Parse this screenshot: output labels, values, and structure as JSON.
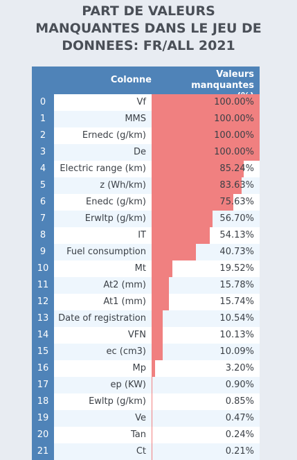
{
  "title": {
    "line1": "PART DE VALEURS",
    "line2": "MANQUANTES DANS LE JEU DE",
    "line3": "DONNEES: FR/ALL 2021"
  },
  "table": {
    "col_header": "Colonne",
    "val_header_line1": "Valeurs manquantes",
    "val_header_line2": "(%)"
  },
  "colors": {
    "bar": "#f08080",
    "header": "#4f83b8"
  },
  "chart_data": {
    "type": "table",
    "columns": [
      "Colonne",
      "Valeurs manquantes (%)"
    ],
    "rows": [
      {
        "index": "0",
        "name": "Vf",
        "value": 100.0,
        "label": "100.00%"
      },
      {
        "index": "1",
        "name": "MMS",
        "value": 100.0,
        "label": "100.00%"
      },
      {
        "index": "2",
        "name": "Ernedc (g/km)",
        "value": 100.0,
        "label": "100.00%"
      },
      {
        "index": "3",
        "name": "De",
        "value": 100.0,
        "label": "100.00%"
      },
      {
        "index": "4",
        "name": "Electric range (km)",
        "value": 85.24,
        "label": "85.24%"
      },
      {
        "index": "5",
        "name": "z (Wh/km)",
        "value": 83.63,
        "label": "83.63%"
      },
      {
        "index": "6",
        "name": "Enedc (g/km)",
        "value": 75.63,
        "label": "75.63%"
      },
      {
        "index": "7",
        "name": "Erwltp (g/km)",
        "value": 56.7,
        "label": "56.70%"
      },
      {
        "index": "8",
        "name": "IT",
        "value": 54.13,
        "label": "54.13%"
      },
      {
        "index": "9",
        "name": "Fuel consumption",
        "value": 40.73,
        "label": "40.73%"
      },
      {
        "index": "10",
        "name": "Mt",
        "value": 19.52,
        "label": "19.52%"
      },
      {
        "index": "11",
        "name": "At2 (mm)",
        "value": 15.78,
        "label": "15.78%"
      },
      {
        "index": "12",
        "name": "At1 (mm)",
        "value": 15.74,
        "label": "15.74%"
      },
      {
        "index": "13",
        "name": "Date of registration",
        "value": 10.54,
        "label": "10.54%"
      },
      {
        "index": "14",
        "name": "VFN",
        "value": 10.13,
        "label": "10.13%"
      },
      {
        "index": "15",
        "name": "ec (cm3)",
        "value": 10.09,
        "label": "10.09%"
      },
      {
        "index": "16",
        "name": "Mp",
        "value": 3.2,
        "label": "3.20%"
      },
      {
        "index": "17",
        "name": "ep (KW)",
        "value": 0.9,
        "label": "0.90%"
      },
      {
        "index": "18",
        "name": "Ewltp (g/km)",
        "value": 0.85,
        "label": "0.85%"
      },
      {
        "index": "19",
        "name": "Ve",
        "value": 0.47,
        "label": "0.47%"
      },
      {
        "index": "20",
        "name": "Tan",
        "value": 0.24,
        "label": "0.24%"
      },
      {
        "index": "21",
        "name": "Ct",
        "value": 0.21,
        "label": "0.21%"
      }
    ]
  }
}
